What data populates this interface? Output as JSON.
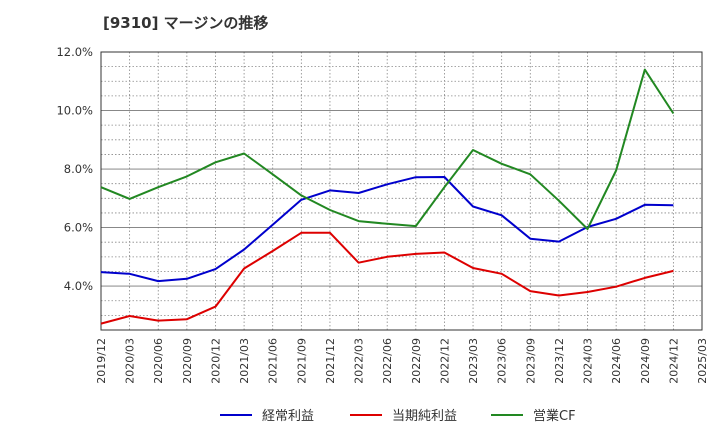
{
  "title": "[9310]  マージンの推移",
  "chart_data": {
    "type": "line",
    "title": "[9310]  マージンの推移",
    "xlabel": "",
    "ylabel": "",
    "ylim": [
      2.5,
      12.0
    ],
    "y_ticks": [
      "4.0%",
      "6.0%",
      "8.0%",
      "10.0%",
      "12.0%"
    ],
    "y_tick_values": [
      4,
      6,
      8,
      10,
      12
    ],
    "x": [
      "2019/12",
      "2020/03",
      "2020/06",
      "2020/09",
      "2020/12",
      "2021/03",
      "2021/06",
      "2021/09",
      "2021/12",
      "2022/03",
      "2022/06",
      "2022/09",
      "2022/12",
      "2023/03",
      "2023/06",
      "2023/09",
      "2023/12",
      "2024/03",
      "2024/06",
      "2024/09",
      "2024/12",
      "2025/03"
    ],
    "grid": true,
    "legend_position": "bottom",
    "series": [
      {
        "name": "経常利益",
        "color": "#0000cc",
        "values": [
          4.48,
          4.42,
          4.17,
          4.25,
          4.58,
          5.25,
          6.1,
          6.95,
          7.27,
          7.18,
          7.48,
          7.72,
          7.73,
          6.72,
          6.42,
          5.62,
          5.52,
          6.02,
          6.3,
          6.78,
          6.76,
          null
        ]
      },
      {
        "name": "当期純利益",
        "color": "#dd0000",
        "values": [
          2.72,
          2.98,
          2.82,
          2.87,
          3.3,
          4.6,
          5.2,
          5.82,
          5.82,
          4.8,
          5.0,
          5.1,
          5.15,
          4.62,
          4.42,
          3.83,
          3.68,
          3.8,
          3.98,
          4.28,
          4.52,
          null
        ]
      },
      {
        "name": "営業CF",
        "color": "#228822",
        "values": [
          7.38,
          6.98,
          7.38,
          7.75,
          8.23,
          8.53,
          7.82,
          7.1,
          6.6,
          6.22,
          6.13,
          6.05,
          7.38,
          8.65,
          8.18,
          7.82,
          6.92,
          5.95,
          7.95,
          11.4,
          9.9,
          null
        ]
      }
    ]
  }
}
